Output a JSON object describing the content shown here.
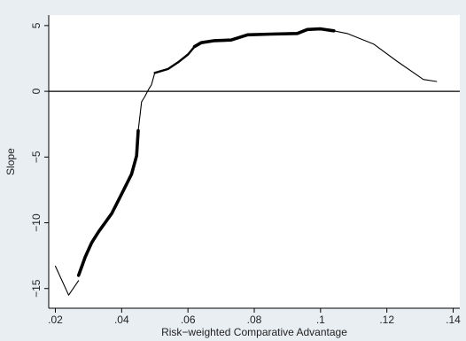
{
  "chart_data": {
    "type": "line",
    "title": "",
    "xlabel": "Risk−weighted Comparative Advantage",
    "ylabel": "Slope",
    "xlim": [
      0.018,
      0.142
    ],
    "ylim": [
      -16.5,
      5.8
    ],
    "xticks": [
      {
        "value": 0.02,
        "label": ".02"
      },
      {
        "value": 0.04,
        "label": ".04"
      },
      {
        "value": 0.06,
        "label": ".06"
      },
      {
        "value": 0.08,
        "label": ".08"
      },
      {
        "value": 0.1,
        "label": ".1"
      },
      {
        "value": 0.12,
        "label": ".12"
      },
      {
        "value": 0.14,
        "label": ".14"
      }
    ],
    "yticks": [
      {
        "value": 5,
        "label": "5"
      },
      {
        "value": 0,
        "label": "0"
      },
      {
        "value": -5,
        "label": "−5"
      },
      {
        "value": -10,
        "label": "−10"
      },
      {
        "value": -15,
        "label": "−15"
      }
    ],
    "reference_line": {
      "y": 0
    },
    "grid": false,
    "legend": "none",
    "colors": {
      "line": "#000000",
      "plot_bg": "#ffffff",
      "outer_bg": "#e9eef3"
    },
    "series": [
      {
        "segments": [
          {
            "weight": "thin",
            "points": [
              [
                0.02,
                -13.3
              ],
              [
                0.024,
                -15.5
              ],
              [
                0.027,
                -14.4
              ]
            ]
          },
          {
            "weight": "thick",
            "points": [
              [
                0.027,
                -14.0
              ],
              [
                0.029,
                -12.6
              ],
              [
                0.031,
                -11.5
              ],
              [
                0.033,
                -10.7
              ],
              [
                0.035,
                -10.0
              ],
              [
                0.037,
                -9.3
              ],
              [
                0.039,
                -8.3
              ],
              [
                0.041,
                -7.3
              ],
              [
                0.043,
                -6.3
              ],
              [
                0.0445,
                -4.9
              ],
              [
                0.045,
                -3.0
              ]
            ]
          },
          {
            "weight": "thin",
            "points": [
              [
                0.045,
                -3.0
              ],
              [
                0.046,
                -0.8
              ],
              [
                0.047,
                -0.4
              ],
              [
                0.048,
                0.1
              ],
              [
                0.049,
                0.5
              ],
              [
                0.05,
                1.4
              ]
            ]
          },
          {
            "weight": "medium",
            "points": [
              [
                0.05,
                1.4
              ],
              [
                0.054,
                1.7
              ],
              [
                0.057,
                2.2
              ],
              [
                0.06,
                2.8
              ],
              [
                0.062,
                3.4
              ]
            ]
          },
          {
            "weight": "thick",
            "points": [
              [
                0.062,
                3.4
              ],
              [
                0.064,
                3.7
              ],
              [
                0.068,
                3.85
              ],
              [
                0.073,
                3.9
              ],
              [
                0.078,
                4.3
              ],
              [
                0.085,
                4.35
              ],
              [
                0.093,
                4.4
              ],
              [
                0.096,
                4.7
              ],
              [
                0.1,
                4.75
              ],
              [
                0.104,
                4.6
              ]
            ]
          },
          {
            "weight": "thin",
            "points": [
              [
                0.104,
                4.6
              ],
              [
                0.108,
                4.4
              ],
              [
                0.116,
                3.6
              ],
              [
                0.123,
                2.3
              ],
              [
                0.131,
                0.9
              ],
              [
                0.135,
                0.75
              ]
            ]
          }
        ]
      }
    ]
  }
}
